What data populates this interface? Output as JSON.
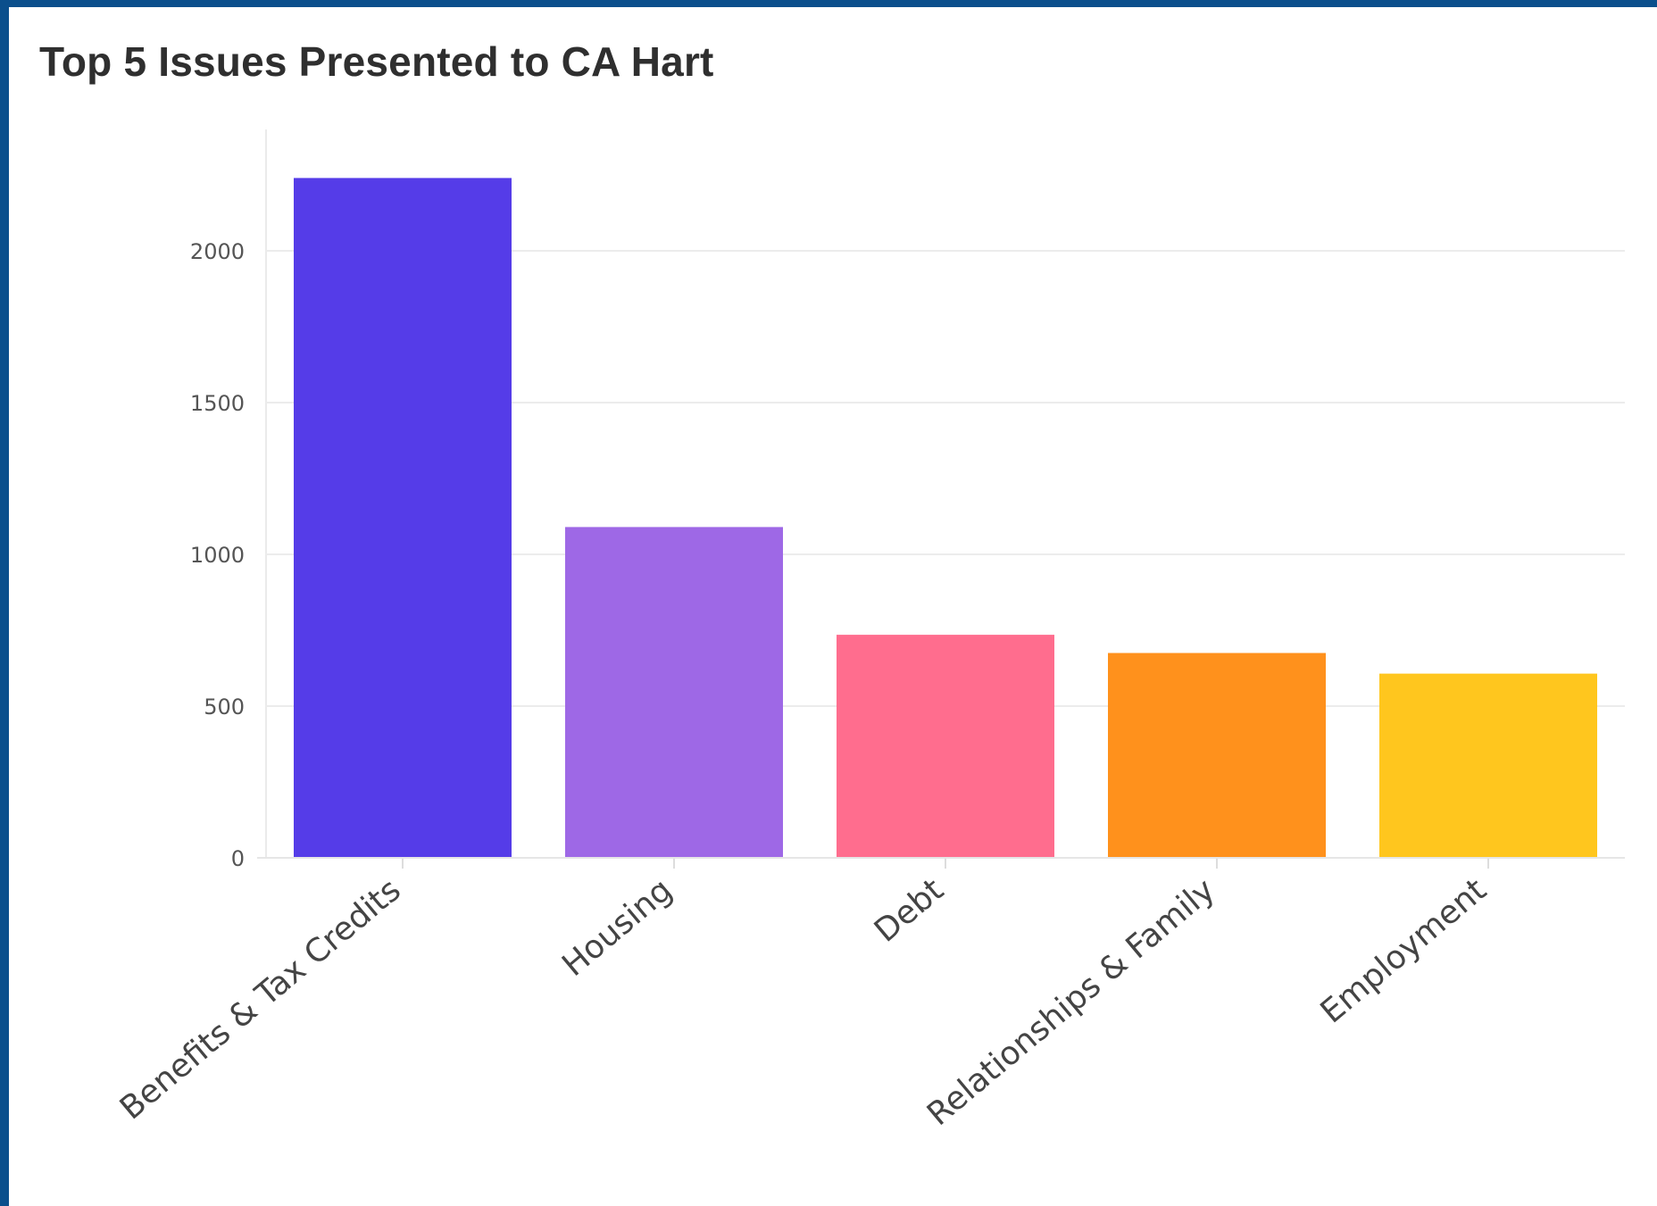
{
  "chart_data": {
    "type": "bar",
    "title": "Top 5 Issues Presented to CA Hart",
    "xlabel": "",
    "ylabel": "",
    "categories": [
      "Benefits & Tax Credits",
      "Housing",
      "Debt",
      "Relationships & Family",
      "Employment"
    ],
    "values": [
      2240,
      1090,
      735,
      675,
      607
    ],
    "colors": [
      "#553ce8",
      "#9e68e6",
      "#ff6d8e",
      "#ff911c",
      "#ffc61e"
    ],
    "ylim": [
      0,
      2400
    ],
    "yticks": [
      0,
      500,
      1000,
      1500,
      2000
    ],
    "grid": true,
    "legend": "none"
  }
}
